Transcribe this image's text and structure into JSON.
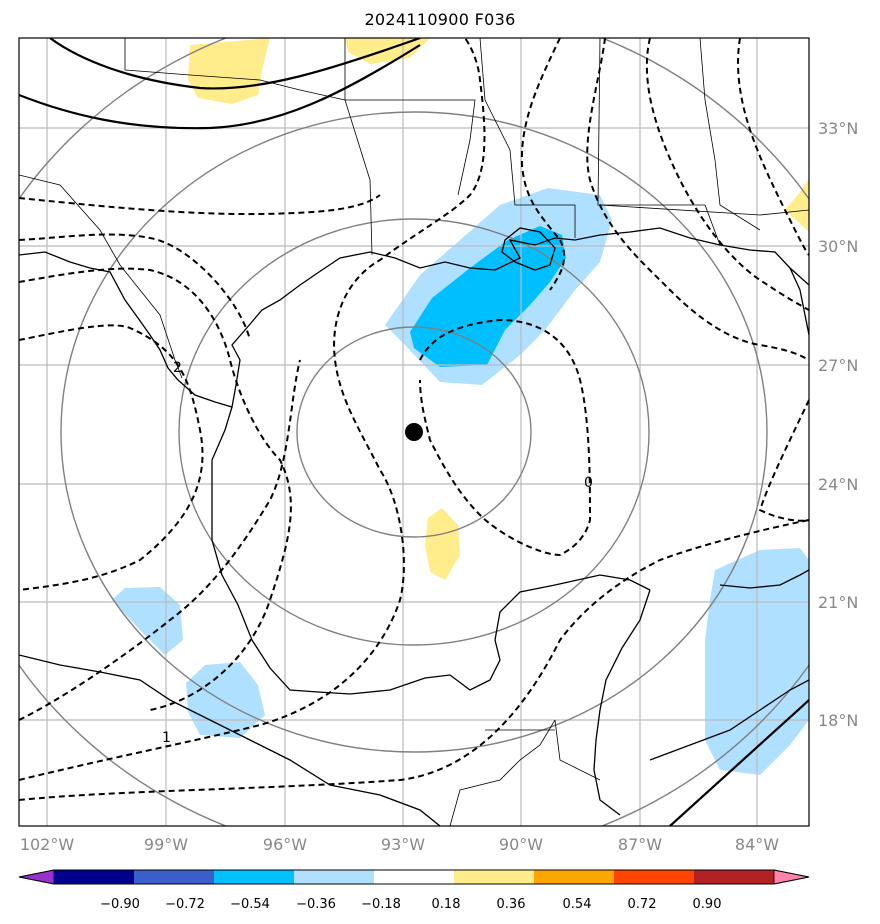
{
  "title": "2024110900 F036",
  "map": {
    "lon_ticks": [
      "102°W",
      "99°W",
      "96°W",
      "93°W",
      "90°W",
      "87°W",
      "84°W"
    ],
    "lat_ticks": [
      "33°N",
      "30°N",
      "27°N",
      "24°N",
      "21°N",
      "18°N"
    ],
    "contour_labels": [
      "2",
      "0",
      "1"
    ],
    "marker": {
      "name": "storm-center"
    }
  },
  "colorbar": {
    "colors": [
      "#9932cc",
      "#00008b",
      "#3a5fcd",
      "#00bfff",
      "#b0e0ff",
      "#ffffff",
      "#ffec8b",
      "#ffa500",
      "#ff4500",
      "#b22222",
      "#ff82ab"
    ],
    "tick_labels": [
      "−0.90",
      "−0.72",
      "−0.54",
      "−0.36",
      "−0.18",
      "0.18",
      "0.36",
      "0.54",
      "0.72",
      "0.90"
    ]
  }
}
